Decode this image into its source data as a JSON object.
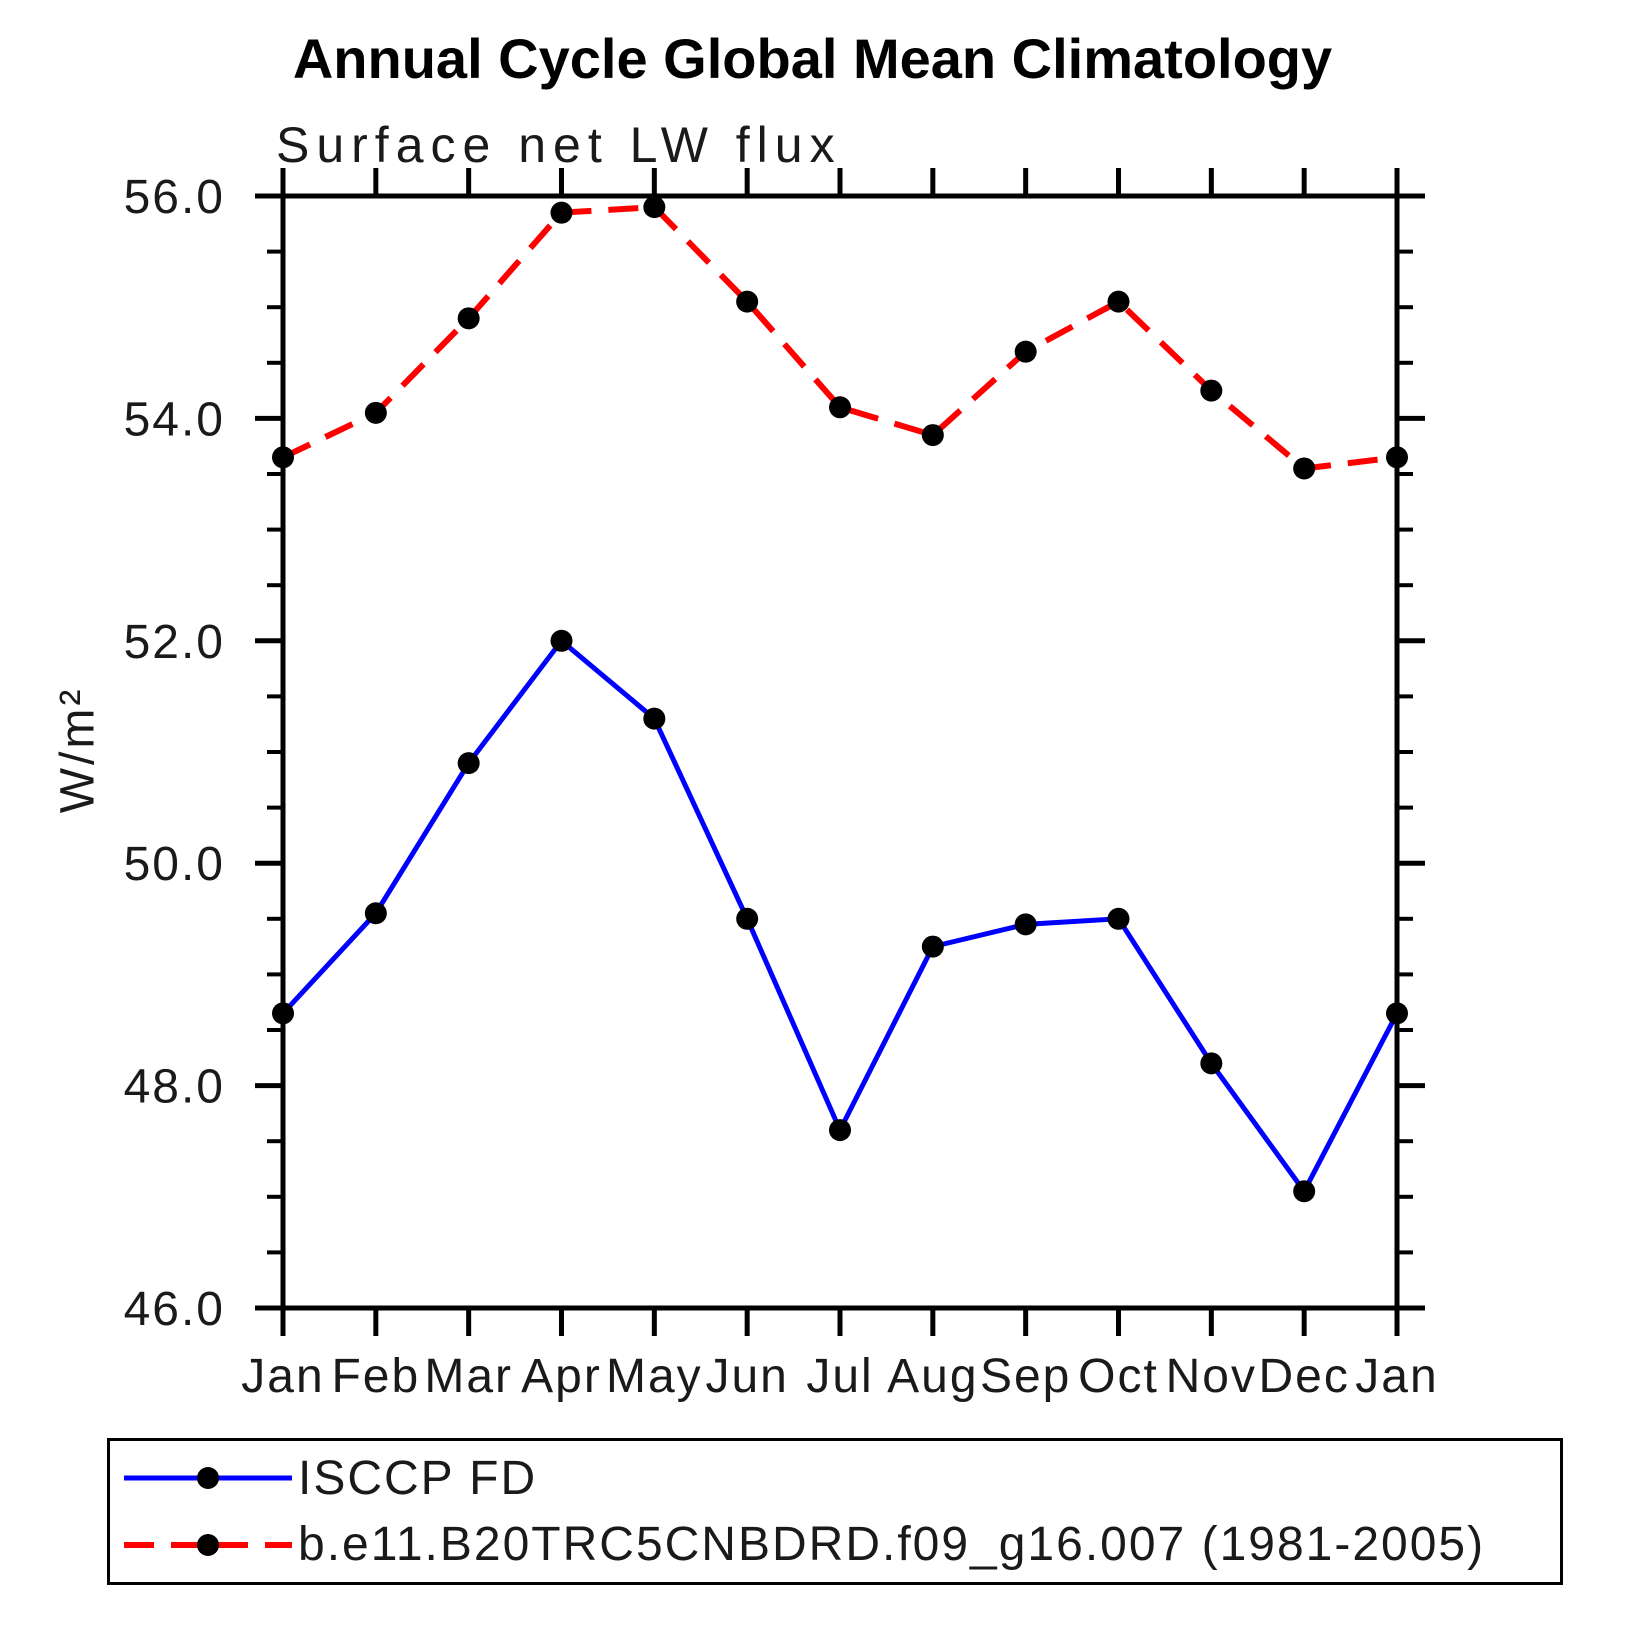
{
  "chart_data": {
    "type": "line",
    "title": "Annual Cycle Global Mean Climatology",
    "subtitle": "Surface net LW flux",
    "ylabel": "W/m²",
    "xlabel": "",
    "categories": [
      "Jan",
      "Feb",
      "Mar",
      "Apr",
      "May",
      "Jun",
      "Jul",
      "Aug",
      "Sep",
      "Oct",
      "Nov",
      "Dec",
      "Jan"
    ],
    "series": [
      {
        "name": "ISCCP FD",
        "color": "#0000ff",
        "line_style": "solid",
        "marker": "circle",
        "marker_color": "#000000",
        "values": [
          48.65,
          49.55,
          50.9,
          52.0,
          51.3,
          49.5,
          47.6,
          49.25,
          49.45,
          49.5,
          48.2,
          47.05,
          48.65
        ]
      },
      {
        "name": "b.e11.B20TRC5CNBDRD.f09_g16.007 (1981-2005)",
        "color": "#ff0000",
        "line_style": "dashed",
        "marker": "circle",
        "marker_color": "#000000",
        "values": [
          53.65,
          54.05,
          54.9,
          55.85,
          55.9,
          55.05,
          54.1,
          53.85,
          54.6,
          55.05,
          54.25,
          53.55,
          53.65
        ]
      }
    ],
    "ylim": [
      46.0,
      56.0
    ],
    "ytick_step": 2.0,
    "yminor_step": 0.5,
    "ytick_labels": [
      "46.0",
      "48.0",
      "50.0",
      "52.0",
      "54.0",
      "56.0"
    ],
    "grid": false,
    "legend_position": "bottom"
  }
}
